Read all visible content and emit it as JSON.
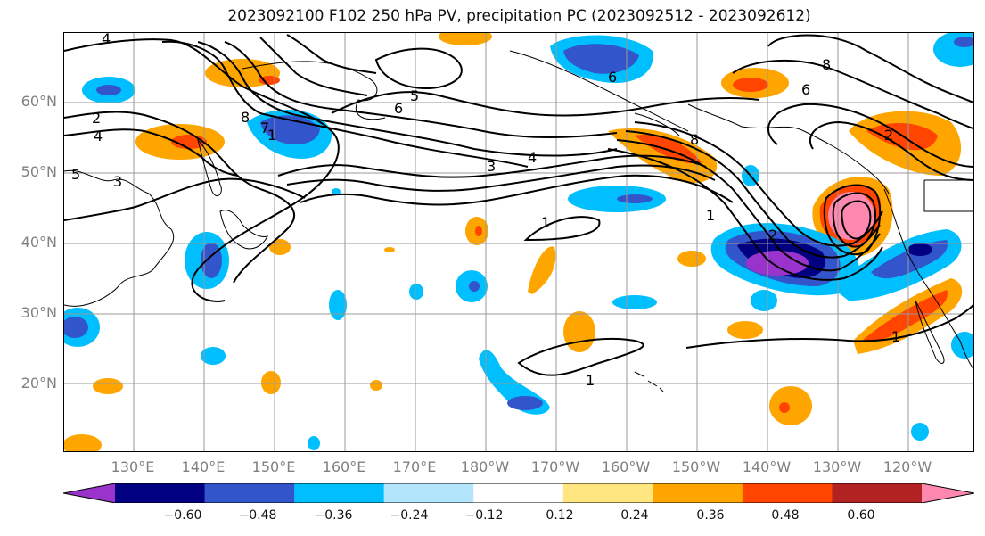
{
  "title": "2023092100 F102 250 hPa PV, precipitation PC (2023092512 - 2023092612)",
  "lat_labels": [
    "60°N",
    "50°N",
    "40°N",
    "30°N",
    "20°N"
  ],
  "lon_labels": [
    "130°E",
    "140°E",
    "150°E",
    "160°E",
    "170°E",
    "180°W",
    "170°W",
    "160°W",
    "150°W",
    "140°W",
    "130°W",
    "120°W"
  ],
  "contour_labels": [
    "4",
    "2",
    "4",
    "5",
    "3",
    "7",
    "8",
    "5",
    "6",
    "3",
    "4",
    "1",
    "1",
    "1",
    "1",
    "2",
    "8",
    "6",
    "8",
    "6",
    "2",
    "1"
  ],
  "colorbar": {
    "ticks": [
      "−0.60",
      "−0.48",
      "−0.36",
      "−0.24",
      "−0.12",
      "0.12",
      "0.24",
      "0.36",
      "0.48",
      "0.60"
    ],
    "colors": [
      "#9933cc",
      "#000080",
      "#3355cc",
      "#00bfff",
      "#b3e5fc",
      "#ffffff",
      "#ffe680",
      "#ffa500",
      "#ff4500",
      "#b22222",
      "#ff88b0"
    ]
  },
  "palette": {
    "neg_extreme": "#9933cc",
    "neg_strong": "#000080",
    "neg_mid": "#3355cc",
    "neg_light": "#00bfff",
    "pos_light": "#ffe680",
    "pos_mid": "#ffa500",
    "pos_strong": "#ff4500",
    "pos_extreme": "#ff88b0",
    "grid": "#999999",
    "contour": "#000000"
  }
}
